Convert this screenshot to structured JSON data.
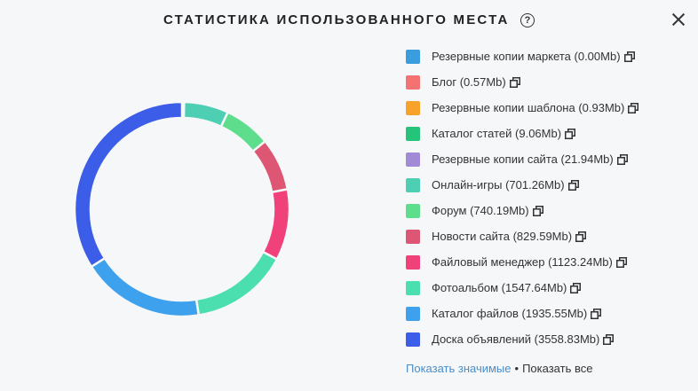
{
  "header": {
    "title": "СТАТИСТИКА ИСПОЛЬЗОВАННОГО МЕСТА",
    "help": "?"
  },
  "legend": [
    {
      "label": "Резервные копии маркета (0.00Mb)",
      "color": "#3b9ddd"
    },
    {
      "label": "Блог (0.57Mb)",
      "color": "#f47272"
    },
    {
      "label": "Резервные копии шаблона (0.93Mb)",
      "color": "#f7a22b"
    },
    {
      "label": "Каталог статей (9.06Mb)",
      "color": "#26c37b"
    },
    {
      "label": "Резервные копии сайта (21.94Mb)",
      "color": "#a18bd6"
    },
    {
      "label": "Онлайн-игры (701.26Mb)",
      "color": "#4ecfb3"
    },
    {
      "label": "Форум (740.19Mb)",
      "color": "#5ede8c"
    },
    {
      "label": "Новости сайта (829.59Mb)",
      "color": "#dd5774"
    },
    {
      "label": "Файловый менеджер (1123.24Mb)",
      "color": "#f0417a"
    },
    {
      "label": "Фотоальбом (1547.64Mb)",
      "color": "#4bdeae"
    },
    {
      "label": "Каталог файлов (1935.55Mb)",
      "color": "#3ea1ed"
    },
    {
      "label": "Доска объявлений (3558.83Mb)",
      "color": "#3b5de8"
    }
  ],
  "footer": {
    "show_significant": "Показать значимые",
    "separator": "•",
    "show_all": "Показать все"
  },
  "chart_data": {
    "type": "pie",
    "categories": [
      "Резервные копии маркета",
      "Блог",
      "Резервные копии шаблона",
      "Каталог статей",
      "Резервные копии сайта",
      "Онлайн-игры",
      "Форум",
      "Новости сайта",
      "Файловый менеджер",
      "Фотоальбом",
      "Каталог файлов",
      "Доска объявлений"
    ],
    "values": [
      0.0,
      0.57,
      0.93,
      9.06,
      21.94,
      701.26,
      740.19,
      829.59,
      1123.24,
      1547.64,
      1935.55,
      3558.83
    ],
    "colors": [
      "#3b9ddd",
      "#f47272",
      "#f7a22b",
      "#26c37b",
      "#a18bd6",
      "#4ecfb3",
      "#5ede8c",
      "#dd5774",
      "#f0417a",
      "#4bdeae",
      "#3ea1ed",
      "#3b5de8"
    ],
    "donut": true
  }
}
